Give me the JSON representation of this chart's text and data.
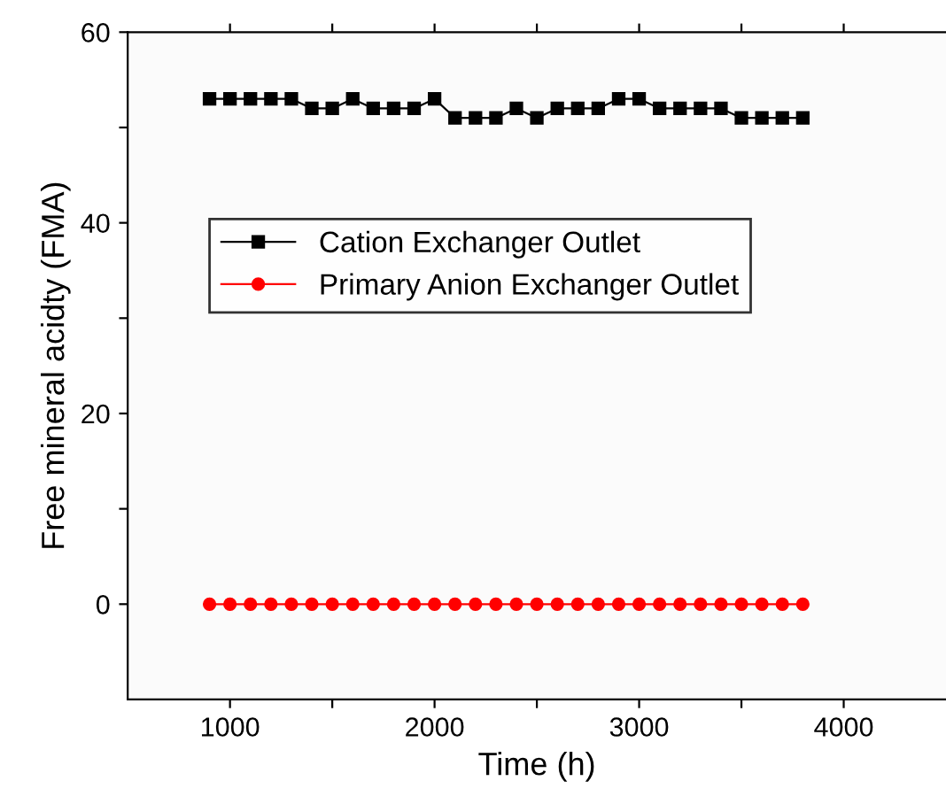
{
  "chart_data": {
    "type": "line",
    "xlabel": "Time (h)",
    "ylabel": "Free mineral acidty (FMA)",
    "x": [
      900,
      1000,
      1100,
      1200,
      1300,
      1400,
      1500,
      1600,
      1700,
      1800,
      1900,
      2000,
      2100,
      2200,
      2300,
      2400,
      2500,
      2600,
      2700,
      2800,
      2900,
      3000,
      3100,
      3200,
      3300,
      3400,
      3500,
      3600,
      3700,
      3800
    ],
    "series": [
      {
        "name": "Cation Exchanger Outlet",
        "color": "#000000",
        "marker": "square",
        "values": [
          53,
          53,
          53,
          53,
          53,
          52,
          52,
          53,
          52,
          52,
          52,
          53,
          51,
          51,
          51,
          52,
          51,
          52,
          52,
          52,
          53,
          53,
          52,
          52,
          52,
          52,
          51,
          51,
          51,
          51
        ]
      },
      {
        "name": "Primary Anion Exchanger Outlet",
        "color": "#ff0000",
        "marker": "circle",
        "values": [
          0,
          0,
          0,
          0,
          0,
          0,
          0,
          0,
          0,
          0,
          0,
          0,
          0,
          0,
          0,
          0,
          0,
          0,
          0,
          0,
          0,
          0,
          0,
          0,
          0,
          0,
          0,
          0,
          0,
          0
        ]
      }
    ],
    "xlim": [
      500,
      4500
    ],
    "xticks": [
      1000,
      {
        "value": 1500,
        "label": null
      },
      2000,
      {
        "value": 2500,
        "label": null
      },
      3000,
      {
        "value": 3500,
        "label": null
      },
      4000
    ],
    "ylim": [
      -10,
      60
    ],
    "yticks": [
      0,
      {
        "value": 10,
        "label": null
      },
      20,
      {
        "value": 30,
        "label": null
      },
      40,
      {
        "value": 50,
        "label": null
      },
      60
    ],
    "grid": false,
    "legend": "left",
    "line_style": "solid"
  }
}
